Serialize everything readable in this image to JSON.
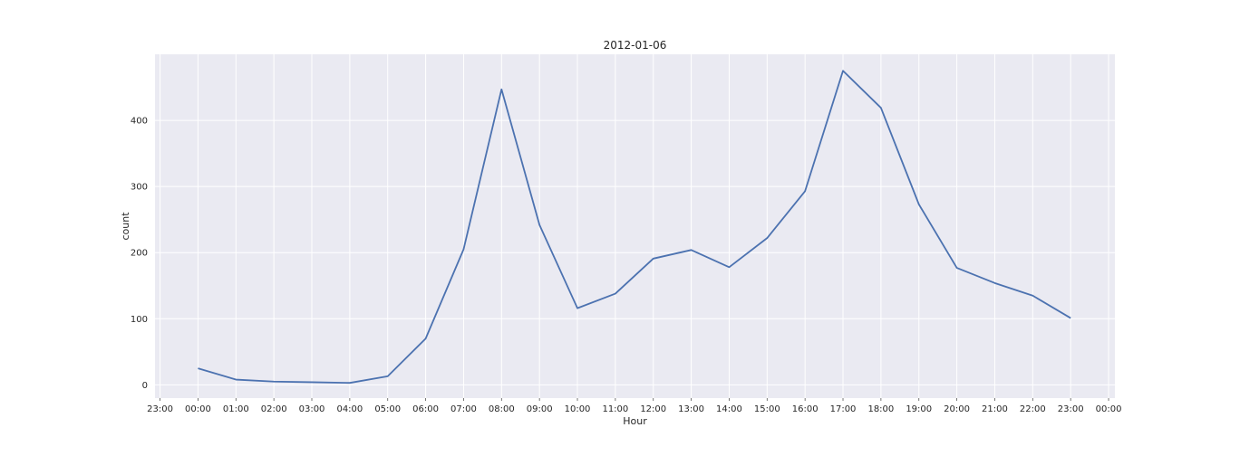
{
  "chart_data": {
    "type": "line",
    "title": "2012-01-06",
    "xlabel": "Hour",
    "ylabel": "count",
    "x_tick_labels": [
      "23:00",
      "00:00",
      "01:00",
      "02:00",
      "03:00",
      "04:00",
      "05:00",
      "06:00",
      "07:00",
      "08:00",
      "09:00",
      "10:00",
      "11:00",
      "12:00",
      "13:00",
      "14:00",
      "15:00",
      "16:00",
      "17:00",
      "18:00",
      "19:00",
      "20:00",
      "21:00",
      "22:00",
      "23:00",
      "00:00"
    ],
    "y_ticks": [
      0,
      100,
      200,
      300,
      400
    ],
    "ylim": [
      -20,
      500
    ],
    "xlim": [
      "2012-01-05 22:52",
      "2012-01-07 00:10"
    ],
    "grid": true,
    "colors": {
      "background": "#eaeaf2",
      "grid": "#ffffff",
      "line": "#4c72b0"
    },
    "series": [
      {
        "x": [
          "00:00",
          "01:00",
          "02:00",
          "03:00",
          "04:00",
          "05:00",
          "06:00",
          "07:00",
          "08:00",
          "09:00",
          "10:00",
          "11:00",
          "12:00",
          "13:00",
          "14:00",
          "15:00",
          "16:00",
          "17:00",
          "18:00",
          "19:00",
          "20:00",
          "21:00",
          "22:00",
          "23:00"
        ],
        "values": [
          25,
          8,
          5,
          4,
          3,
          13,
          70,
          205,
          447,
          242,
          116,
          138,
          191,
          204,
          178,
          222,
          293,
          475,
          419,
          273,
          177,
          154,
          135,
          101
        ]
      }
    ]
  }
}
